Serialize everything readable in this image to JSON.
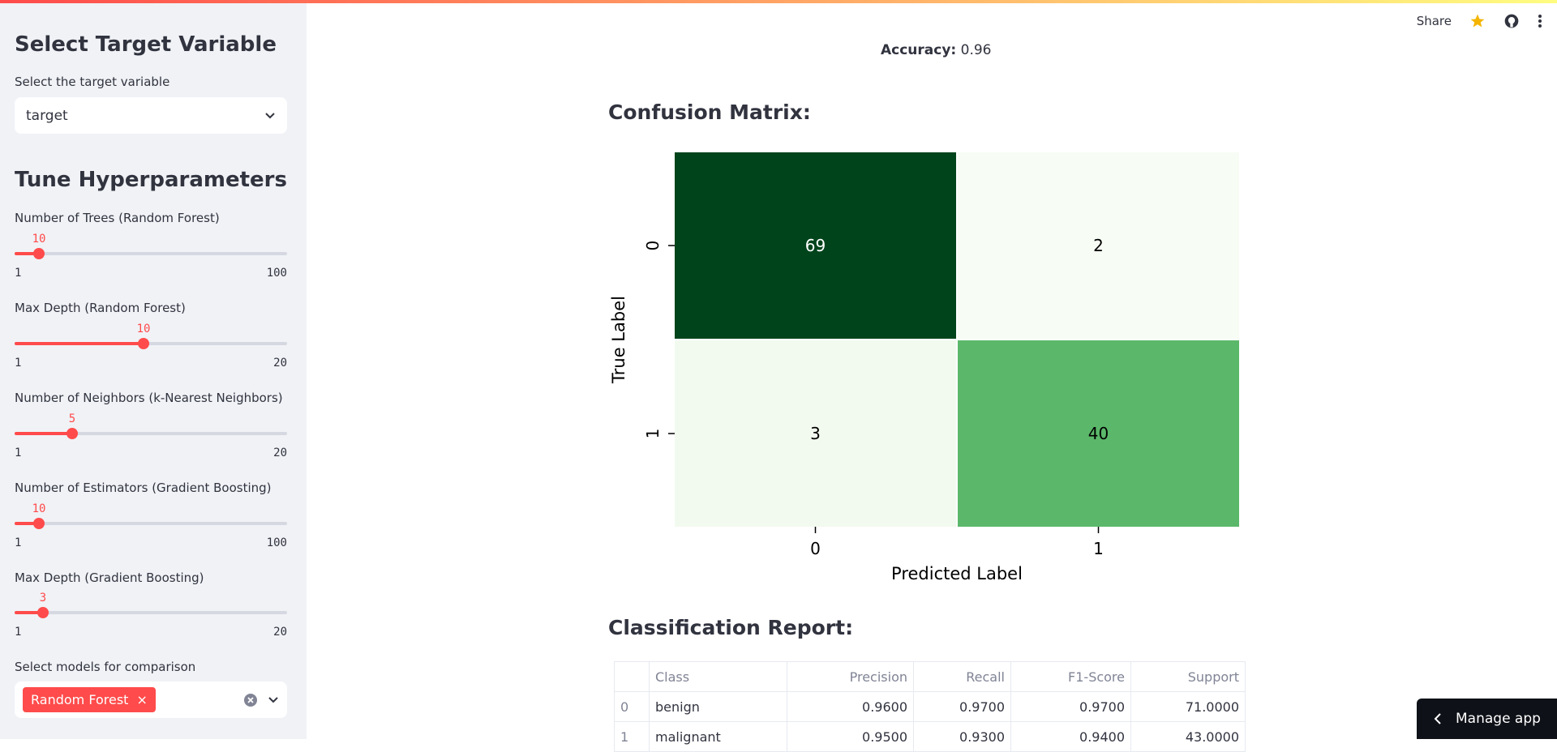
{
  "sidebar": {
    "target_title": "Select Target Variable",
    "target_label": "Select the target variable",
    "target_value": "target",
    "tune_title": "Tune Hyperparameters",
    "sliders": [
      {
        "label": "Number of Trees (Random Forest)",
        "value": "10",
        "min": "1",
        "max": "100",
        "fraction": 0.091
      },
      {
        "label": "Max Depth (Random Forest)",
        "value": "10",
        "min": "1",
        "max": "20",
        "fraction": 0.474
      },
      {
        "label": "Number of Neighbors (k-Nearest Neighbors)",
        "value": "5",
        "min": "1",
        "max": "20",
        "fraction": 0.211
      },
      {
        "label": "Number of Estimators (Gradient Boosting)",
        "value": "10",
        "min": "1",
        "max": "100",
        "fraction": 0.091
      },
      {
        "label": "Max Depth (Gradient Boosting)",
        "value": "3",
        "min": "1",
        "max": "20",
        "fraction": 0.105
      }
    ],
    "models_label": "Select models for comparison",
    "models_tag": "Random Forest"
  },
  "header": {
    "share": "Share"
  },
  "main": {
    "accuracy_label": "Accuracy:",
    "accuracy_value": "0.96",
    "confusion_title": "Confusion Matrix:",
    "report_title": "Classification Report:"
  },
  "chart_data": {
    "type": "heatmap",
    "title": "",
    "xlabel": "Predicted Label",
    "ylabel": "True Label",
    "x_ticks": [
      "0",
      "1"
    ],
    "y_ticks": [
      "0",
      "1"
    ],
    "values": [
      [
        69,
        2
      ],
      [
        3,
        40
      ]
    ],
    "colormap": "Greens",
    "colors": {
      "c00": "#00441b",
      "c01": "#f7fcf5",
      "c10": "#f2faef",
      "c11": "#5bb86a"
    }
  },
  "report": {
    "headers": [
      "",
      "Class",
      "Precision",
      "Recall",
      "F1-Score",
      "Support"
    ],
    "rows": [
      [
        "0",
        "benign",
        "0.9600",
        "0.9700",
        "0.9700",
        "71.0000"
      ],
      [
        "1",
        "malignant",
        "0.9500",
        "0.9300",
        "0.9400",
        "43.0000"
      ]
    ]
  },
  "manage_app": "Manage app"
}
